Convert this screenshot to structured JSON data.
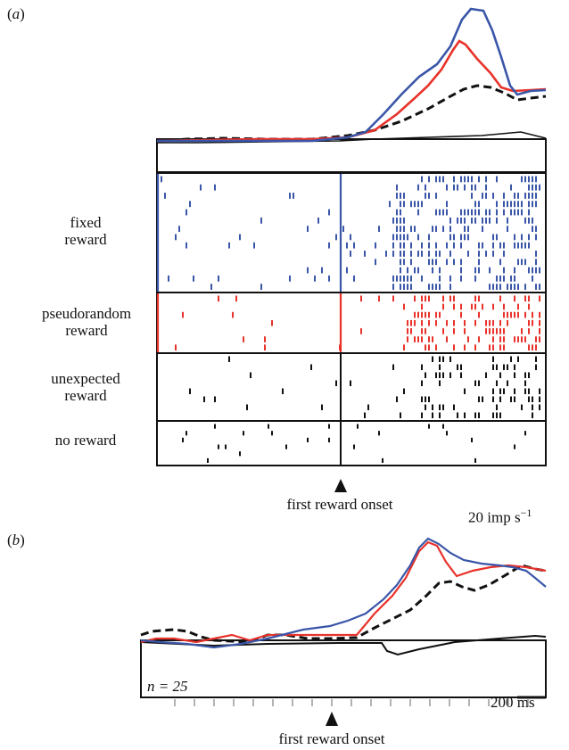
{
  "panel_a": {
    "label_letter": "a",
    "rows": [
      {
        "line1": "fixed",
        "line2": "reward",
        "color": "#3a56a8"
      },
      {
        "line1": "pseudorandom",
        "line2": "reward",
        "color": "#e8322a"
      },
      {
        "line1": "unexpected",
        "line2": "reward",
        "color": "#111111"
      },
      {
        "line1": "no reward",
        "line2": "",
        "color": "#111111"
      }
    ],
    "onset_label": "first reward onset",
    "scale_bar_label": "20 imp s",
    "scale_bar_exponent": "−1"
  },
  "panel_b": {
    "label_letter": "b",
    "n_label": "n = 25",
    "onset_label": "first reward onset",
    "scale_bar_label": "200 ms"
  },
  "colors": {
    "fixed": "#3a56a8",
    "pseudorandom": "#e8322a",
    "unexpected": "#111111",
    "no_reward": "#111111"
  }
}
